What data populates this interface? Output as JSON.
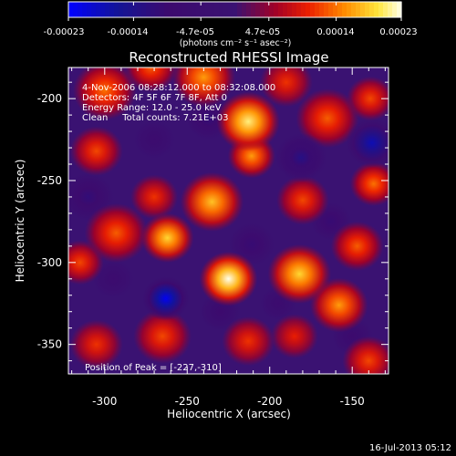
{
  "colorbar": {
    "ticks": [
      "-0.00023",
      "-0.00014",
      "-4.7e-05",
      "4.7e-05",
      "0.00014",
      "0.00023"
    ],
    "tick_values": [
      -0.00023,
      -0.00014,
      -4.7e-05,
      4.7e-05,
      0.00014,
      0.00023
    ],
    "range": [
      -0.00023,
      0.00023
    ],
    "unit_label": "(photons cm⁻² s⁻¹ asec⁻²)"
  },
  "chart_data": {
    "type": "heatmap",
    "title": "Reconstructed RHESSI Image",
    "xlabel": "Heliocentric X (arcsec)",
    "ylabel": "Heliocentric Y (arcsec)",
    "xlim": [
      -322,
      -128
    ],
    "ylim": [
      -368,
      -181
    ],
    "x_ticks": [
      -300,
      -250,
      -200,
      -150
    ],
    "y_ticks": [
      -200,
      -250,
      -300,
      -350
    ],
    "annotations": [
      "4-Nov-2006 08:28:12.000 to 08:32:08.000",
      "Detectors: 4F 5F 6F 7F 8F, Att 0",
      "Energy Range: 12.0 - 25.0 keV",
      "Clean     Total counts: 7.21E+03"
    ],
    "peak_label": "Position of Peak = [-227,-310]",
    "peak": [
      -227,
      -310
    ],
    "blobs": [
      {
        "x": -225,
        "y": -310,
        "r": 11,
        "v": 0.00023
      },
      {
        "x": -213,
        "y": -214,
        "r": 12,
        "v": 0.00021
      },
      {
        "x": -211,
        "y": -235,
        "r": 9,
        "v": 0.00016
      },
      {
        "x": -240,
        "y": -187,
        "r": 12,
        "v": 0.00016
      },
      {
        "x": -272,
        "y": -181,
        "r": 10,
        "v": 0.00013
      },
      {
        "x": -300,
        "y": -195,
        "r": 12,
        "v": 0.00014
      },
      {
        "x": -305,
        "y": -232,
        "r": 10,
        "v": 0.00012
      },
      {
        "x": -235,
        "y": -263,
        "r": 12,
        "v": 0.00018
      },
      {
        "x": -262,
        "y": -285,
        "r": 10,
        "v": 0.00019
      },
      {
        "x": -270,
        "y": -260,
        "r": 9,
        "v": 0.00011
      },
      {
        "x": -293,
        "y": -282,
        "r": 12,
        "v": 0.00013
      },
      {
        "x": -315,
        "y": -300,
        "r": 9,
        "v": 0.00012
      },
      {
        "x": -182,
        "y": -307,
        "r": 12,
        "v": 0.00019
      },
      {
        "x": -158,
        "y": -326,
        "r": 11,
        "v": 0.00016
      },
      {
        "x": -147,
        "y": -290,
        "r": 10,
        "v": 0.00013
      },
      {
        "x": -137,
        "y": -252,
        "r": 9,
        "v": 0.00014
      },
      {
        "x": -180,
        "y": -262,
        "r": 10,
        "v": 0.00012
      },
      {
        "x": -165,
        "y": -212,
        "r": 12,
        "v": 0.00013
      },
      {
        "x": -190,
        "y": -190,
        "r": 10,
        "v": 0.00011
      },
      {
        "x": -139,
        "y": -200,
        "r": 9,
        "v": 0.00012
      },
      {
        "x": -213,
        "y": -348,
        "r": 10,
        "v": 0.00011
      },
      {
        "x": -265,
        "y": -345,
        "r": 11,
        "v": 0.00012
      },
      {
        "x": -305,
        "y": -350,
        "r": 10,
        "v": 0.00011
      },
      {
        "x": -185,
        "y": -345,
        "r": 9,
        "v": 0.0001
      },
      {
        "x": -140,
        "y": -360,
        "r": 10,
        "v": 0.00012
      },
      {
        "x": -263,
        "y": -322,
        "r": 9,
        "v": -0.00022
      },
      {
        "x": -138,
        "y": -227,
        "r": 10,
        "v": -0.00018
      },
      {
        "x": -181,
        "y": -236,
        "r": 10,
        "v": -0.00013
      },
      {
        "x": -211,
        "y": -289,
        "r": 9,
        "v": -0.0001
      },
      {
        "x": -237,
        "y": -212,
        "r": 9,
        "v": -0.00011
      },
      {
        "x": -310,
        "y": -260,
        "r": 10,
        "v": -0.00011
      },
      {
        "x": -163,
        "y": -275,
        "r": 8,
        "v": -0.0001
      },
      {
        "x": -295,
        "y": -310,
        "r": 8,
        "v": -8e-05
      },
      {
        "x": -230,
        "y": -330,
        "r": 8,
        "v": -9e-05
      },
      {
        "x": -150,
        "y": -345,
        "r": 8,
        "v": -9e-05
      },
      {
        "x": -270,
        "y": -225,
        "r": 8,
        "v": -8e-05
      },
      {
        "x": -195,
        "y": -325,
        "r": 7,
        "v": -8e-05
      }
    ]
  },
  "footer": {
    "date": "16-Jul-2013 05:12"
  }
}
